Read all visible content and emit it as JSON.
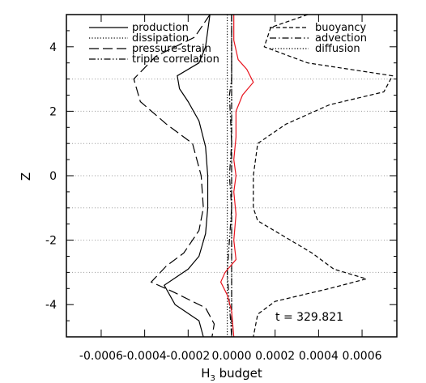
{
  "chart_data": {
    "type": "line",
    "xlabel": "H",
    "xlabel_sub": "3",
    "xlabel_rest": " budget",
    "ylabel": "Z",
    "xlim": [
      -0.00076,
      0.00076
    ],
    "ylim": [
      -5,
      5
    ],
    "x_ticks": [
      -0.0006,
      -0.0004,
      -0.0002,
      0.0,
      0.0002,
      0.0004,
      0.0006
    ],
    "x_tick_labels": [
      "-0.0006",
      "-0.0004",
      "-0.0002",
      "0.0000",
      "0.0002",
      "0.0004",
      "0.0006"
    ],
    "y_ticks": [
      -4,
      -2,
      0,
      2,
      4
    ],
    "y_tick_labels": [
      "-4",
      "-2",
      "0",
      "2",
      "4"
    ],
    "grid": "horizontal dotted lines at z = -3, -2, -1, 0, 1, 2, 3",
    "grid_levels": [
      -3,
      -2,
      -1,
      0,
      1,
      2,
      3
    ],
    "annotation": "t = 329.821",
    "legend_left": [
      "production",
      "dissipation",
      "pressure-strain",
      "triple correlation"
    ],
    "legend_right": [
      "buoyancy",
      "advection",
      "diffusion"
    ],
    "series": [
      {
        "name": "production",
        "style": "solid",
        "color": "#000000",
        "points": [
          [
            -0.0001,
            5
          ],
          [
            -0.00012,
            4
          ],
          [
            -0.00015,
            3.5
          ],
          [
            -0.00025,
            3.1
          ],
          [
            -0.00024,
            2.7
          ],
          [
            -0.0002,
            2.3
          ],
          [
            -0.00015,
            1.7
          ],
          [
            -0.00012,
            0.9
          ],
          [
            -0.00011,
            0
          ],
          [
            -0.00011,
            -1
          ],
          [
            -0.00012,
            -1.8
          ],
          [
            -0.00015,
            -2.5
          ],
          [
            -0.0002,
            -2.9
          ],
          [
            -0.00031,
            -3.4
          ],
          [
            -0.00026,
            -4
          ],
          [
            -0.00015,
            -4.5
          ],
          [
            -0.00013,
            -5
          ]
        ]
      },
      {
        "name": "dissipation",
        "style": "dotted",
        "color": "#000000",
        "points": [
          [
            -2e-05,
            5
          ],
          [
            -2e-05,
            3
          ],
          [
            -2e-05,
            0
          ],
          [
            -2e-05,
            -3
          ],
          [
            -2e-05,
            -5
          ]
        ]
      },
      {
        "name": "pressure-strain",
        "style": "longdash",
        "color": "#000000",
        "points": [
          [
            -0.0001,
            5
          ],
          [
            -0.00017,
            4.3
          ],
          [
            -0.00035,
            3.7
          ],
          [
            -0.00045,
            3.0
          ],
          [
            -0.00042,
            2.3
          ],
          [
            -0.0003,
            1.6
          ],
          [
            -0.00018,
            1.0
          ],
          [
            -0.00014,
            0
          ],
          [
            -0.00013,
            -1
          ],
          [
            -0.00015,
            -1.7
          ],
          [
            -0.00022,
            -2.4
          ],
          [
            -0.0003,
            -2.8
          ],
          [
            -0.00037,
            -3.3
          ],
          [
            -0.00027,
            -3.6
          ],
          [
            -0.00012,
            -4.1
          ],
          [
            -8e-05,
            -4.6
          ],
          [
            -9e-05,
            -5
          ]
        ]
      },
      {
        "name": "triple correlation",
        "style": "dashdotdot",
        "color": "#000000",
        "points": [
          [
            0.0,
            5
          ],
          [
            0.0,
            3
          ],
          [
            -1e-05,
            2.5
          ],
          [
            0.0,
            1
          ],
          [
            -1e-05,
            0
          ],
          [
            0.0,
            -1
          ],
          [
            -2e-05,
            -3
          ],
          [
            -1e-05,
            -4
          ],
          [
            0.0,
            -5
          ]
        ]
      },
      {
        "name": "buoyancy",
        "style": "shortdash",
        "color": "#000000",
        "points": [
          [
            0.00035,
            5
          ],
          [
            0.00018,
            4.6
          ],
          [
            0.00015,
            4.0
          ],
          [
            0.00035,
            3.5
          ],
          [
            0.00074,
            3.1
          ],
          [
            0.0007,
            2.6
          ],
          [
            0.00045,
            2.2
          ],
          [
            0.00025,
            1.6
          ],
          [
            0.00012,
            1.0
          ],
          [
            0.0001,
            0
          ],
          [
            0.0001,
            -1
          ],
          [
            0.00012,
            -1.4
          ],
          [
            0.00022,
            -1.8
          ],
          [
            0.00037,
            -2.4
          ],
          [
            0.00047,
            -2.9
          ],
          [
            0.00062,
            -3.2
          ],
          [
            0.00045,
            -3.5
          ],
          [
            0.0002,
            -3.9
          ],
          [
            0.00012,
            -4.3
          ],
          [
            0.0001,
            -5
          ]
        ]
      },
      {
        "name": "advection",
        "style": "dashdot",
        "color": "#000000",
        "points": [
          [
            0.0,
            5
          ],
          [
            0.0,
            0
          ],
          [
            0.0,
            -5
          ]
        ]
      },
      {
        "name": "diffusion",
        "style": "dotted",
        "color": "#000000",
        "points": [
          [
            0.0,
            5
          ],
          [
            0.0,
            0
          ],
          [
            0.0,
            -5
          ]
        ]
      },
      {
        "name": "",
        "style": "solid",
        "color": "#e8141e",
        "points": [
          [
            1e-05,
            5
          ],
          [
            1e-05,
            4.2
          ],
          [
            3e-05,
            3.6
          ],
          [
            7e-05,
            3.3
          ],
          [
            0.0001,
            2.9
          ],
          [
            5e-05,
            2.5
          ],
          [
            2e-05,
            2.0
          ],
          [
            2e-05,
            1.2
          ],
          [
            1e-05,
            0.5
          ],
          [
            2e-05,
            0
          ],
          [
            1e-05,
            -0.5
          ],
          [
            2e-05,
            -1.2
          ],
          [
            1e-05,
            -2.0
          ],
          [
            2e-05,
            -2.6
          ],
          [
            -3e-05,
            -3.0
          ],
          [
            -5e-05,
            -3.3
          ],
          [
            -2e-05,
            -3.7
          ],
          [
            0.0,
            -4.2
          ],
          [
            1e-05,
            -5
          ]
        ]
      }
    ]
  }
}
